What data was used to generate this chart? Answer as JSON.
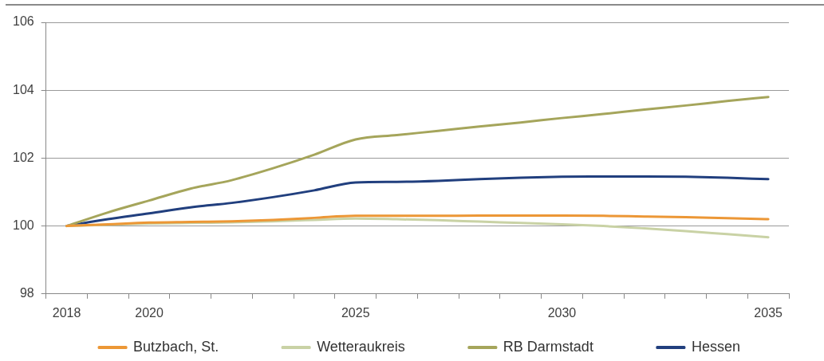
{
  "chart_data": {
    "type": "line",
    "categories": [
      "2018",
      null,
      "2020",
      null,
      null,
      null,
      null,
      "2025",
      null,
      null,
      null,
      null,
      "2030",
      null,
      null,
      null,
      null,
      "2035"
    ],
    "series": [
      {
        "name": "Butzbach, St.",
        "color": "#ec9736",
        "values": [
          100.0,
          100.05,
          100.1,
          100.12,
          100.14,
          100.18,
          100.24,
          100.3,
          100.3,
          100.3,
          100.31,
          100.31,
          100.31,
          100.3,
          100.28,
          100.26,
          100.23,
          100.2
        ]
      },
      {
        "name": "Wetteraukreis",
        "color": "#c9d2a5",
        "values": [
          100.0,
          100.04,
          100.07,
          100.09,
          100.11,
          100.14,
          100.18,
          100.22,
          100.2,
          100.17,
          100.13,
          100.09,
          100.05,
          100.0,
          99.93,
          99.85,
          99.76,
          99.67
        ]
      },
      {
        "name": "RB Darmstadt",
        "color": "#a5a55b",
        "values": [
          100.0,
          100.4,
          100.75,
          101.1,
          101.35,
          101.7,
          102.1,
          102.55,
          102.68,
          102.8,
          102.93,
          103.05,
          103.18,
          103.3,
          103.43,
          103.55,
          103.68,
          103.8
        ]
      },
      {
        "name": "Hessen",
        "color": "#213f7e",
        "values": [
          100.0,
          100.2,
          100.37,
          100.55,
          100.68,
          100.85,
          101.05,
          101.28,
          101.3,
          101.33,
          101.38,
          101.42,
          101.45,
          101.46,
          101.46,
          101.45,
          101.42,
          101.38
        ]
      }
    ],
    "ylim": [
      98,
      106
    ],
    "yticks": [
      98,
      100,
      102,
      104,
      106
    ],
    "grid": "y",
    "legend": "bottom",
    "marker": "none",
    "line_style": "solid"
  }
}
